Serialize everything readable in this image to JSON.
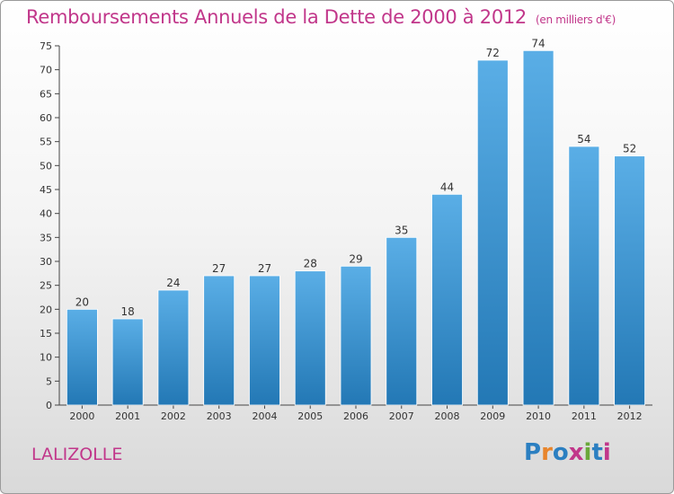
{
  "header": {
    "title": "Remboursements Annuels de la Dette de 2000 à 2012",
    "unit": "(en milliers d'€)"
  },
  "commune": "LALIZOLLE",
  "logo": {
    "text": "Proxiti",
    "letter_colors": [
      "#2b7fc1",
      "#e8852c",
      "#2b7fc1",
      "#c1368a",
      "#6aa83a",
      "#2b7fc1",
      "#c1368a"
    ]
  },
  "colors": {
    "bar_top": "#5aaee6",
    "bar_bottom": "#2378b5",
    "title": "#c1368a"
  },
  "chart_data": {
    "type": "bar",
    "title": "Remboursements Annuels de la Dette de 2000 à 2012",
    "xlabel": "",
    "ylabel": "",
    "categories": [
      "2000",
      "2001",
      "2002",
      "2003",
      "2004",
      "2005",
      "2006",
      "2007",
      "2008",
      "2009",
      "2010",
      "2011",
      "2012"
    ],
    "values": [
      20,
      18,
      24,
      27,
      27,
      28,
      29,
      35,
      44,
      72,
      74,
      54,
      52
    ],
    "ylim": [
      0,
      75
    ],
    "yticks": [
      0,
      5,
      10,
      15,
      20,
      25,
      30,
      35,
      40,
      45,
      50,
      55,
      60,
      65,
      70,
      75
    ],
    "grid": false,
    "legend": "none"
  }
}
